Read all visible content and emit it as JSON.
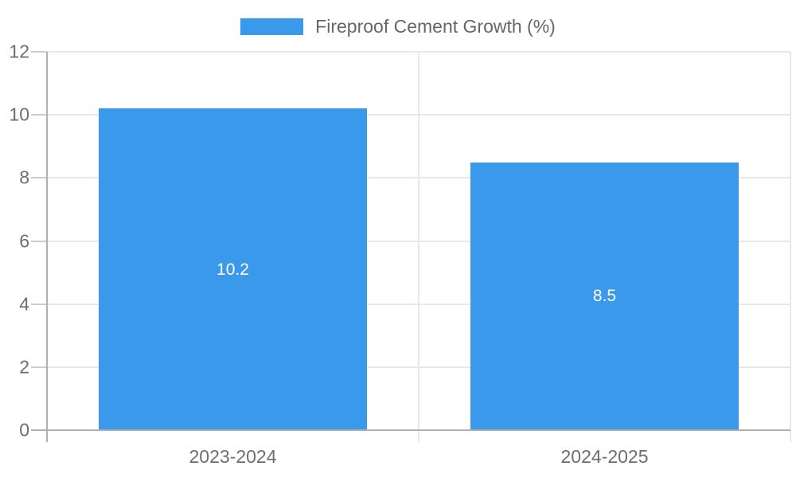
{
  "legend": {
    "label": "Fireproof Cement Growth (%)"
  },
  "colors": {
    "bar": "#3b99ec",
    "grid": "#e8e8e8",
    "axis": "#b0b0b0",
    "tick": "#cccccc",
    "axis_text": "#6e6e6e",
    "legend_text": "#666666",
    "bar_label_text": "#ffffff",
    "background": "#ffffff"
  },
  "chart_data": {
    "type": "bar",
    "categories": [
      "2023-2024",
      "2024-2025"
    ],
    "values": [
      10.2,
      8.5
    ],
    "bar_labels": [
      "10.2",
      "8.5"
    ],
    "series_name": "Fireproof Cement Growth (%)",
    "title": "",
    "xlabel": "",
    "ylabel": "",
    "ylim": [
      0,
      12
    ],
    "yticks": [
      0,
      2,
      4,
      6,
      8,
      10,
      12
    ],
    "grid": true,
    "legend_position": "top-center",
    "bar_band_fraction": 0.722
  }
}
